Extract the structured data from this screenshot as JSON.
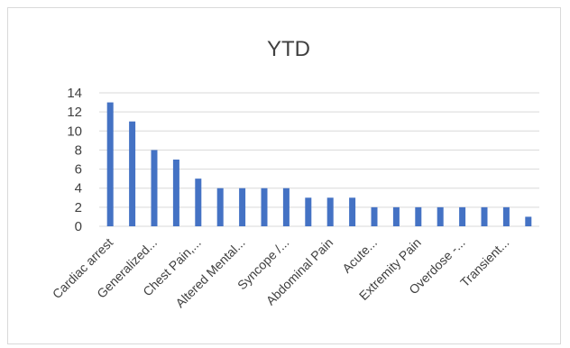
{
  "chart_data": {
    "type": "bar",
    "title": "YTD",
    "xlabel": "",
    "ylabel": "",
    "ylim": [
      0,
      14
    ],
    "yticks": [
      0,
      2,
      4,
      6,
      8,
      10,
      12,
      14
    ],
    "grid": true,
    "legend": "none",
    "bar_color": "#4472c4",
    "categories": [
      "Cardiac arrest",
      "",
      "Generalized...",
      "",
      "Chest Pain,...",
      "",
      "Altered Mental...",
      "",
      "Syncope /...",
      "",
      "Abdominal Pain",
      "",
      "Acute...",
      "",
      "Extremity Pain",
      "",
      "Overdose -...",
      "",
      "Transient...",
      ""
    ],
    "values": [
      13,
      11,
      8,
      7,
      5,
      4,
      4,
      4,
      4,
      3,
      3,
      3,
      2,
      2,
      2,
      2,
      2,
      2,
      2,
      1
    ]
  }
}
